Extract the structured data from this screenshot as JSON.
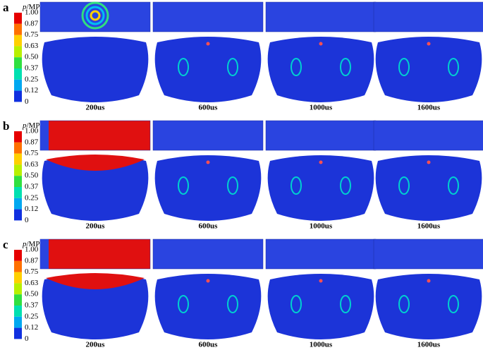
{
  "panels": [
    {
      "label": "a",
      "legend_symbol": "p",
      "legend_unit": "/MPa",
      "ticks": [
        "1.00",
        "0.87",
        "0.75",
        "0.63",
        "0.50",
        "0.37",
        "0.25",
        "0.12",
        "0"
      ],
      "times": [
        "200us",
        "600us",
        "1000us",
        "1600us"
      ]
    },
    {
      "label": "b",
      "legend_symbol": "p",
      "legend_unit": "/MPa",
      "ticks": [
        "1.00",
        "0.87",
        "0.75",
        "0.63",
        "0.50",
        "0.37",
        "0.25",
        "0.12",
        "0"
      ],
      "times": [
        "200us",
        "600us",
        "1000us",
        "1600us"
      ]
    },
    {
      "label": "c",
      "legend_symbol": "p",
      "legend_unit": "/MPa",
      "ticks": [
        "1.00",
        "0.87",
        "0.75",
        "0.63",
        "0.50",
        "0.37",
        "0.25",
        "0.12",
        "0"
      ],
      "times": [
        "200us",
        "600us",
        "1000us",
        "1600us"
      ]
    }
  ]
}
